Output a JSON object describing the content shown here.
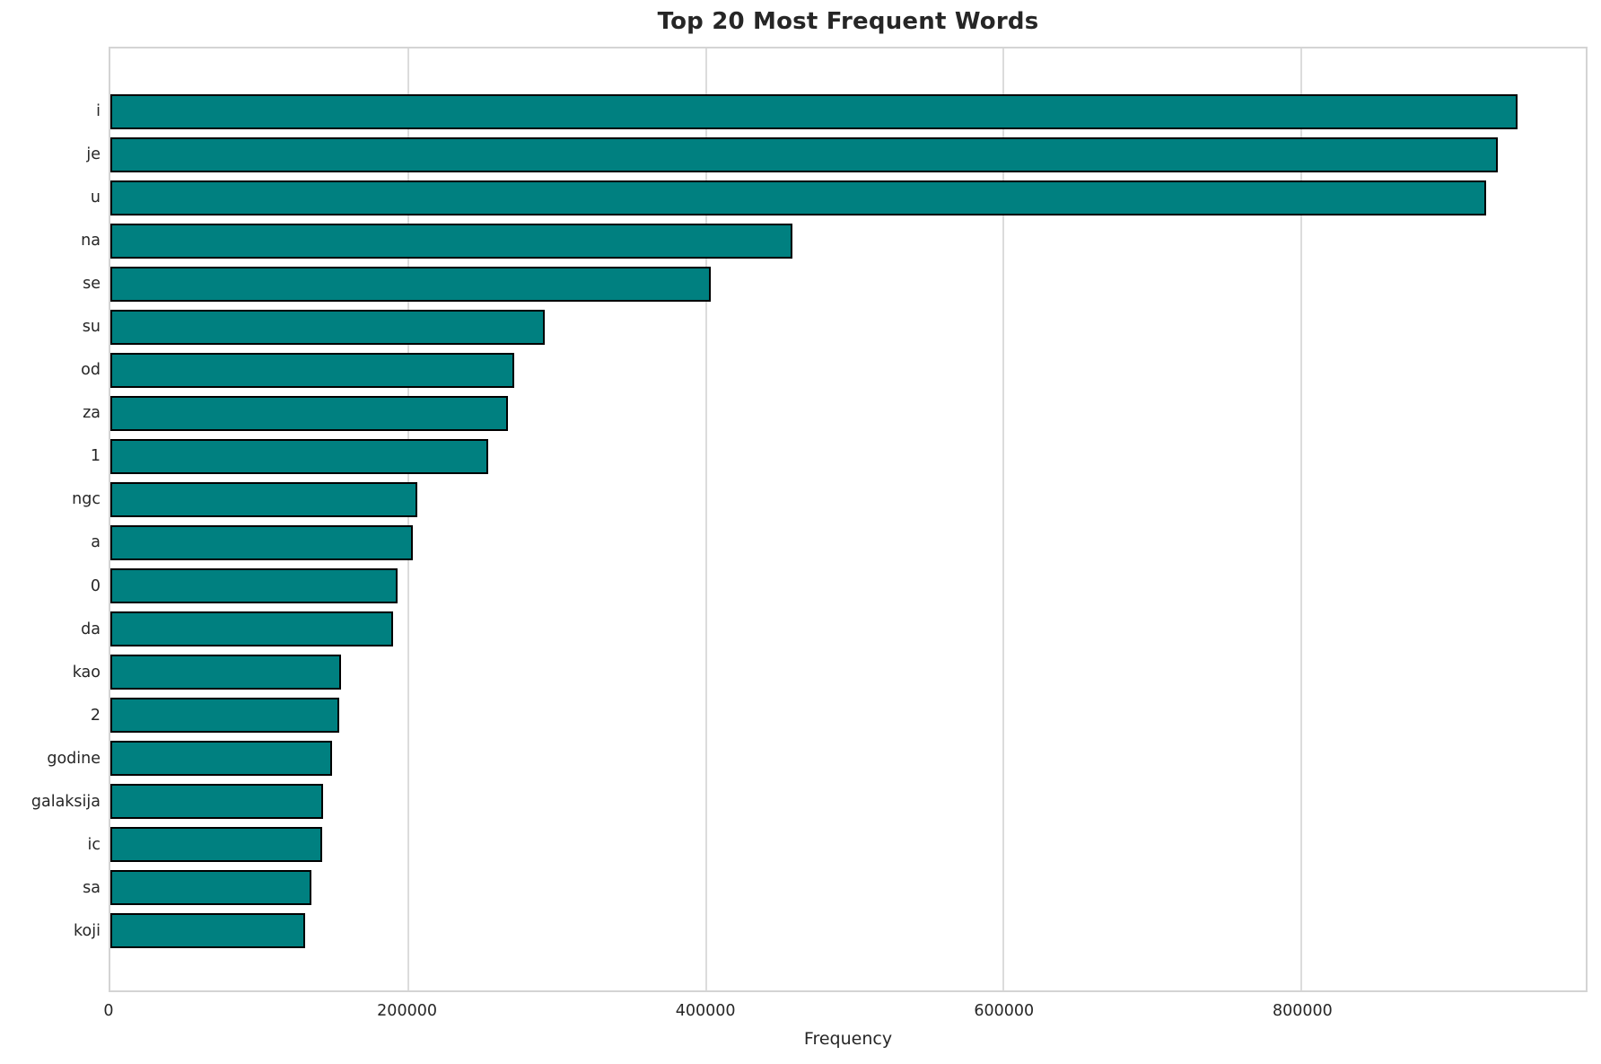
{
  "chart_data": {
    "type": "bar",
    "orientation": "horizontal",
    "title": "Top 20 Most Frequent Words",
    "xlabel": "Frequency",
    "ylabel": "",
    "categories": [
      "i",
      "je",
      "u",
      "na",
      "se",
      "su",
      "od",
      "za",
      "1",
      "ngc",
      "a",
      "0",
      "da",
      "kao",
      "2",
      "godine",
      "galaksija",
      "ic",
      "sa",
      "koji"
    ],
    "values": [
      945000,
      932000,
      924000,
      458000,
      403000,
      292000,
      271000,
      267000,
      254000,
      206000,
      203000,
      193000,
      190000,
      155000,
      154000,
      149000,
      143000,
      142000,
      135000,
      131000
    ],
    "xlim": [
      0,
      991000
    ],
    "xticks": [
      0,
      200000,
      400000,
      600000,
      800000
    ],
    "xtick_labels": [
      "0",
      "200000",
      "400000",
      "600000",
      "800000"
    ],
    "grid": true,
    "legend": null,
    "colors": {
      "bar_fill": "#008080",
      "bar_edge": "#000000",
      "grid_line": "#dcdcdc",
      "plot_border": "#d4d4d4",
      "text": "#262626",
      "background": "#ffffff"
    }
  }
}
